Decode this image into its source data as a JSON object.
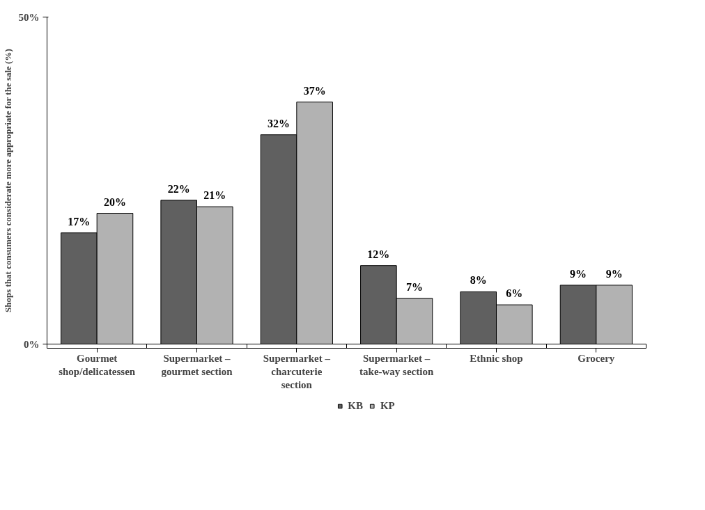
{
  "chart_data": {
    "type": "bar",
    "ylabel": "Shops that consumers considerate more appropriate for the sale (%)",
    "categories": [
      "Gourmet shop/delicatessen",
      "Supermarket – gourmet section",
      "Supermarket – charcuterie section",
      "Supermarket – take-way section",
      "Ethnic shop",
      "Grocery"
    ],
    "series": [
      {
        "name": "KB",
        "color": "#606060",
        "values": [
          17,
          22,
          32,
          12,
          8,
          9
        ],
        "value_labels": [
          "17%",
          "22%",
          "32%",
          "12%",
          "8%",
          "9%"
        ]
      },
      {
        "name": "KP",
        "color": "#b2b2b2",
        "values": [
          20,
          21,
          37,
          7,
          6,
          9
        ],
        "value_labels": [
          "20%",
          "21%",
          "37%",
          "7%",
          "6%",
          "9%"
        ]
      }
    ],
    "ylim": [
      0,
      50
    ],
    "yticks": [
      {
        "value": 0,
        "label": "0%"
      },
      {
        "value": 50,
        "label": "50%"
      }
    ],
    "legend": "bottom"
  }
}
